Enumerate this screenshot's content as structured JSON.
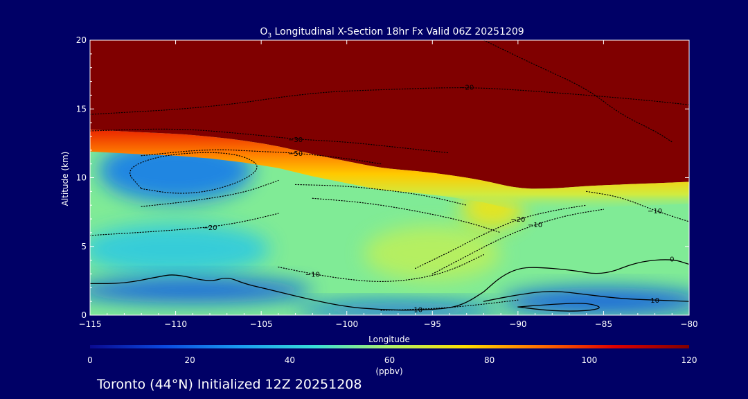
{
  "chart_data": {
    "type": "heatmap",
    "title_prefix": "O",
    "title_sub": "3",
    "title_rest": " Longitudinal X-Section 18hr  Fx Valid 06Z 20251209",
    "xlabel": "Longitude",
    "ylabel": "Altitude (km)",
    "xlim": [
      -115,
      -80
    ],
    "ylim": [
      0,
      20
    ],
    "x_ticks": [
      -115,
      -110,
      -105,
      -100,
      -95,
      -90,
      -85,
      -80
    ],
    "x_tick_labels": [
      "−115",
      "−110",
      "−105",
      "−100",
      "−95",
      "−90",
      "−85",
      "−80"
    ],
    "y_ticks": [
      0,
      5,
      10,
      15,
      20
    ],
    "y_tick_labels": [
      "0",
      "5",
      "10",
      "15",
      "20"
    ],
    "colorbar": {
      "range": [
        0,
        120
      ],
      "ticks": [
        0,
        20,
        40,
        60,
        80,
        100,
        120
      ],
      "tick_labels": [
        "0",
        "20",
        "40",
        "60",
        "80",
        "100",
        "120"
      ],
      "unit_label": "(ppbv)",
      "stops": [
        "#0a0a90",
        "#0b4ae0",
        "#1a9cf0",
        "#38e0d8",
        "#b0f26a",
        "#ffe000",
        "#ff7000",
        "#e00000",
        "#800000"
      ]
    },
    "background_value": 54,
    "tropopause": {
      "lon": [
        -115,
        -112,
        -110,
        -108,
        -106,
        -104,
        -102,
        -100,
        -98,
        -96,
        -94,
        -92,
        -90,
        -88,
        -86,
        -84,
        -82,
        -80
      ],
      "alt": [
        13.5,
        13.3,
        13.2,
        13.0,
        12.7,
        12.3,
        11.7,
        11.2,
        10.7,
        10.5,
        10.2,
        9.8,
        9.2,
        9.2,
        9.4,
        9.5,
        9.6,
        9.7
      ]
    },
    "low_ozone_regions": [
      {
        "name": "upper-west",
        "lon": -110,
        "alt": 10.5,
        "sx": 4.5,
        "sy": 2.3,
        "value": 24
      },
      {
        "name": "lower-west",
        "lon": -110,
        "alt": 4.8,
        "sx": 5.5,
        "sy": 1.9,
        "value": 40
      },
      {
        "name": "surface-west",
        "lon": -109,
        "alt": 1.8,
        "sx": 7.0,
        "sy": 0.9,
        "value": 18
      },
      {
        "name": "surface-mid",
        "lon": -97,
        "alt": 0.4,
        "sx": 6.0,
        "sy": 0.6,
        "value": 20
      },
      {
        "name": "surface-east",
        "lon": -85,
        "alt": 1.0,
        "sx": 6.0,
        "sy": 1.0,
        "value": 18
      }
    ],
    "enhanced_ozone_regions": [
      {
        "name": "mid-plume",
        "lon": -95,
        "alt": 4.5,
        "sx": 4.0,
        "sy": 2.0,
        "value": 62
      },
      {
        "name": "fold-tongue",
        "lon": -91.5,
        "alt": 7.8,
        "sx": 1.8,
        "sy": 1.5,
        "value": 72
      }
    ],
    "dotted_contours": [
      {
        "label": "−20",
        "lon": [
          -115,
          -108,
          -102,
          -98,
          -93,
          -89,
          -83,
          -80
        ],
        "alt": [
          14.6,
          15.1,
          16.2,
          16.4,
          16.6,
          16.3,
          15.7,
          15.3
        ],
        "label_at": 4
      },
      {
        "label": "−30",
        "lon": [
          -115,
          -110,
          -106,
          -103,
          -100,
          -97,
          -94
        ],
        "alt": [
          13.4,
          13.6,
          13.2,
          12.8,
          12.6,
          12.2,
          11.8
        ],
        "label_at": 3
      },
      {
        "label": "−50",
        "lon": [
          -112,
          -108,
          -105,
          -103,
          -100,
          -98
        ],
        "alt": [
          11.6,
          12.1,
          11.9,
          11.8,
          11.4,
          11.0
        ],
        "label_at": 3
      },
      {
        "label": "−20",
        "lon": [
          -115,
          -111,
          -108,
          -106,
          -104
        ],
        "alt": [
          5.8,
          6.1,
          6.4,
          6.8,
          7.4
        ],
        "label_at": 2
      },
      {
        "label": "−10",
        "lon": [
          -104,
          -102,
          -100,
          -98,
          -96,
          -94,
          -92
        ],
        "alt": [
          3.5,
          3.0,
          2.6,
          2.4,
          2.6,
          3.2,
          4.4
        ],
        "label_at": 1
      },
      {
        "label": "−20",
        "lon": [
          -96,
          -94,
          -92,
          -90,
          -88,
          -86
        ],
        "alt": [
          3.4,
          4.6,
          5.9,
          7.0,
          7.6,
          8.0
        ],
        "label_at": 3
      },
      {
        "label": "−10",
        "lon": [
          -95,
          -93,
          -91,
          -89,
          -87,
          -85
        ],
        "alt": [
          3.0,
          4.3,
          5.6,
          6.6,
          7.3,
          7.7
        ],
        "label_at": 3
      },
      {
        "label": "−10",
        "lon": [
          -86,
          -84,
          -82,
          -80
        ],
        "alt": [
          9.0,
          8.6,
          7.6,
          6.8
        ],
        "label_at": 2
      },
      {
        "label": "−10",
        "lon": [
          -98,
          -96,
          -94,
          -92,
          -90
        ],
        "alt": [
          0.35,
          0.42,
          0.55,
          0.8,
          1.1
        ],
        "label_at": 1
      },
      {
        "label": "",
        "lon": [
          -112,
          -110,
          -108,
          -106,
          -105,
          -106,
          -108,
          -111,
          -113,
          -112
        ],
        "alt": [
          9.2,
          8.8,
          9.0,
          9.8,
          10.8,
          11.6,
          11.9,
          11.6,
          10.6,
          9.2
        ],
        "label_at": -1
      },
      {
        "label": "",
        "lon": [
          -92,
          -89,
          -86,
          -84,
          -82,
          -81
        ],
        "alt": [
          20,
          18.2,
          16.5,
          14.6,
          13.4,
          12.6
        ],
        "label_at": -1
      },
      {
        "label": "",
        "lon": [
          -103,
          -100,
          -97,
          -95,
          -93
        ],
        "alt": [
          9.5,
          9.4,
          9.0,
          8.6,
          8.0
        ],
        "label_at": -1
      },
      {
        "label": "",
        "lon": [
          -102,
          -99,
          -96,
          -93,
          -91
        ],
        "alt": [
          8.5,
          8.2,
          7.6,
          6.8,
          6.0
        ],
        "label_at": -1
      },
      {
        "label": "",
        "lon": [
          -112,
          -109,
          -106,
          -104
        ],
        "alt": [
          7.9,
          8.3,
          8.9,
          9.8
        ],
        "label_at": -1
      }
    ],
    "solid_contours": [
      {
        "label": "0",
        "lon": [
          -115,
          -113,
          -111,
          -110,
          -108,
          -107,
          -106,
          -105,
          -104,
          -102,
          -100,
          -98,
          -96,
          -94,
          -93,
          -92
        ],
        "alt": [
          2.3,
          2.3,
          2.8,
          3.0,
          2.4,
          2.8,
          2.3,
          2.0,
          1.7,
          1.1,
          0.6,
          0.4,
          0.35,
          0.5,
          0.9,
          1.7
        ],
        "label_at": -1
      },
      {
        "label": "0",
        "lon": [
          -92,
          -91,
          -90,
          -89,
          -87,
          -85,
          -83,
          -81,
          -80
        ],
        "alt": [
          1.7,
          2.8,
          3.4,
          3.5,
          3.3,
          2.9,
          3.9,
          4.1,
          3.7
        ],
        "label_at": 7
      },
      {
        "label": "10",
        "lon": [
          -92,
          -90,
          -88,
          -86,
          -84,
          -82,
          -80
        ],
        "alt": [
          1.0,
          1.5,
          1.8,
          1.5,
          1.2,
          1.1,
          1.0
        ],
        "label_at": 5
      },
      {
        "label": "",
        "lon": [
          -90,
          -88,
          -86,
          -85,
          -86,
          -88,
          -90
        ],
        "alt": [
          0.6,
          0.8,
          0.9,
          0.55,
          0.3,
          0.3,
          0.6
        ],
        "label_at": -1
      }
    ],
    "location_text": "Toronto (44°N) Initialized 12Z 20251208"
  }
}
